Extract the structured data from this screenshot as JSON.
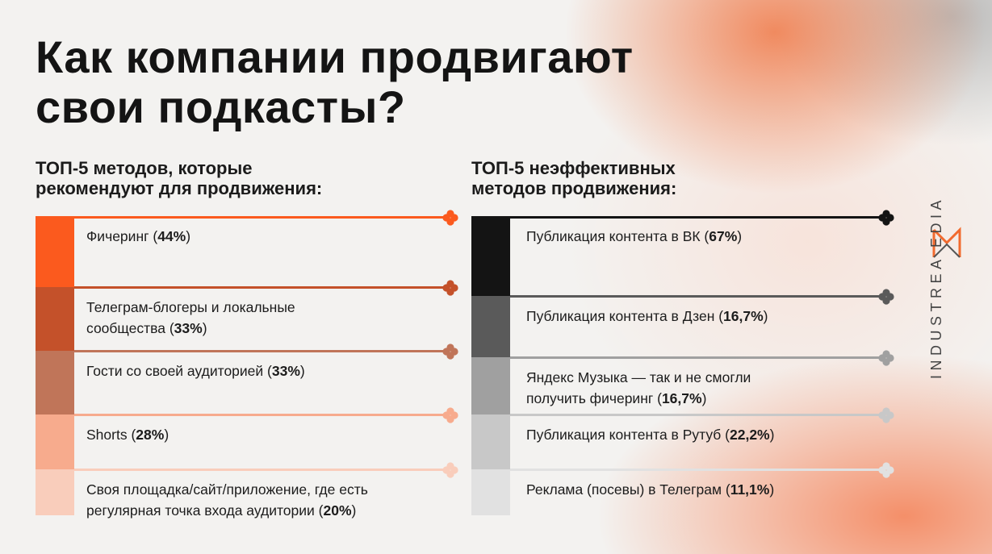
{
  "title": {
    "line1": "Как компании продвигают",
    "line2": "свои подкасты?"
  },
  "logo": {
    "text": "INDUSTREAMMEDIA",
    "display": "INDUSTREA  EDIA"
  },
  "chart_data": [
    {
      "type": "bar",
      "subtitle_line1": "ТОП-5 методов, которые",
      "subtitle_line2": "рекомендуют для продвижения:",
      "color_ramp": [
        "#fb5a1e",
        "#c4512a",
        "#c07559",
        "#f7ab8d",
        "#f9cdbb"
      ],
      "items": [
        {
          "label": "Фичеринг (",
          "value_text": "44%",
          "suffix": ")",
          "value": 44
        },
        {
          "label": "Телеграм-блогеры и локальные",
          "label2": "сообщества (",
          "value_text": "33%",
          "suffix": ")",
          "value": 33
        },
        {
          "label": "Гости со своей аудиторией (",
          "value_text": "33%",
          "suffix": ")",
          "value": 33
        },
        {
          "label": "Shorts (",
          "value_text": "28%",
          "suffix": ")",
          "value": 28
        },
        {
          "label": "Своя площадка/сайт/приложение, где есть",
          "label2": "регулярная точка входа аудитории (",
          "value_text": "20%",
          "suffix": ")",
          "value": 20
        }
      ]
    },
    {
      "type": "bar",
      "subtitle_line1": "ТОП-5 неэффективных",
      "subtitle_line2": "методов продвижения:",
      "color_ramp": [
        "#141414",
        "#5a5a5a",
        "#a0a0a0",
        "#c8c8c8",
        "#e1e1e1"
      ],
      "items": [
        {
          "label": "Публикация контента в ВК (",
          "value_text": "67%",
          "suffix": ")",
          "value": 67
        },
        {
          "label": "Публикация контента в Дзен (",
          "value_text": "16,7%",
          "suffix": ")",
          "value": 16.7
        },
        {
          "label": "Яндекс Музыка — так и не смогли",
          "label2": "получить фичеринг (",
          "value_text": "16,7%",
          "suffix": ")",
          "value": 16.7
        },
        {
          "label": "Публикация контента в Рутуб (",
          "value_text": "22,2%",
          "suffix": ")",
          "value": 22.2
        },
        {
          "label": "Реклама (посевы) в Телеграм (",
          "value_text": "11,1%",
          "suffix": ")",
          "value": 11.1
        }
      ]
    }
  ]
}
